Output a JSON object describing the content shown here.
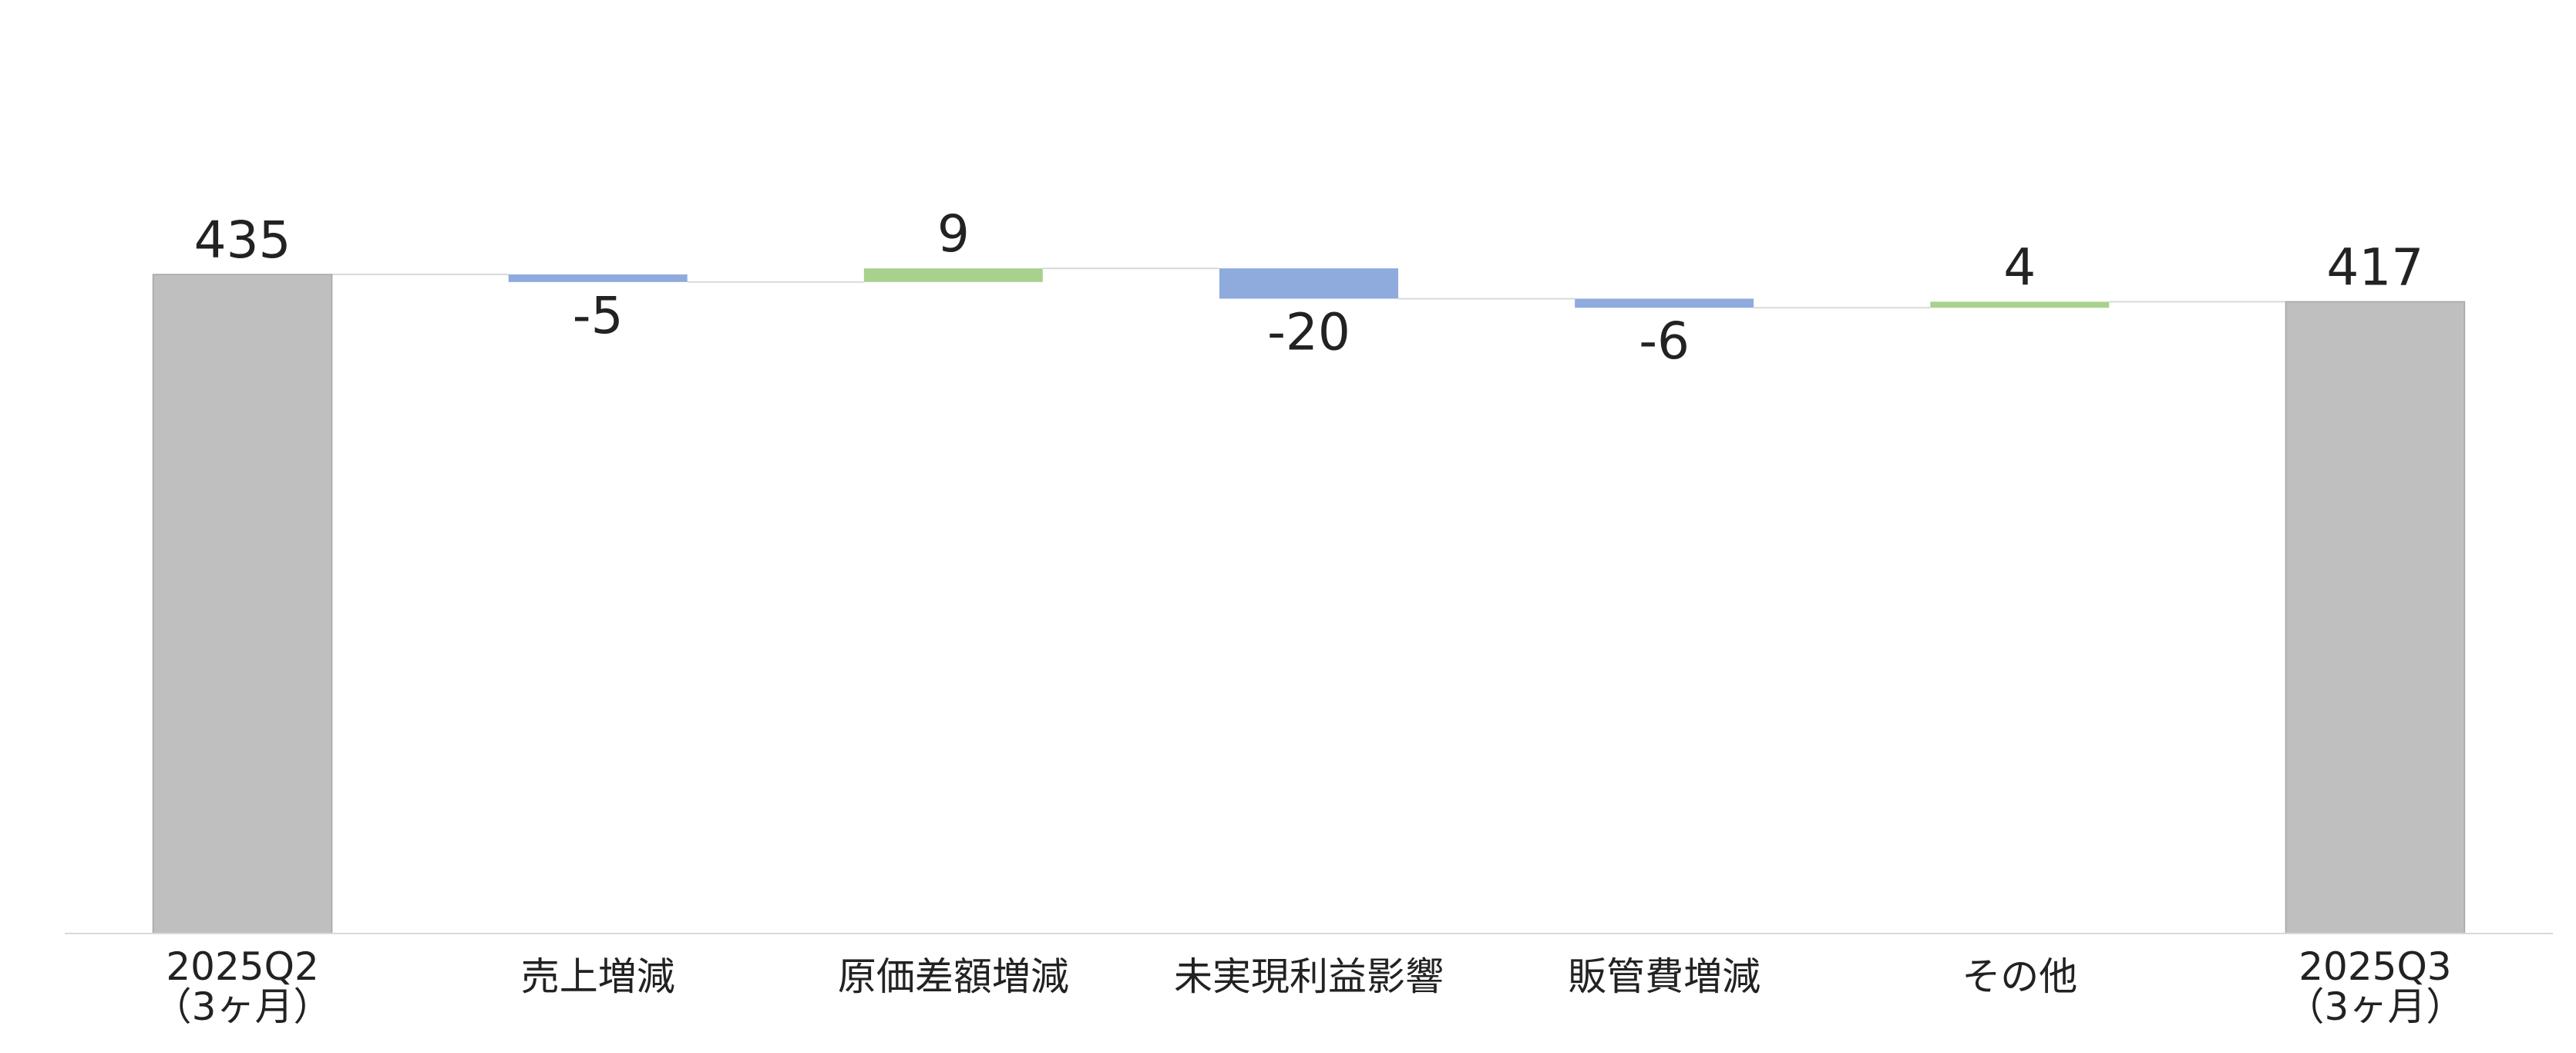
{
  "chart_data": {
    "type": "waterfall",
    "title": "",
    "xlabel": "",
    "ylabel": "",
    "grid": false,
    "legend": "none",
    "ylim": [
      0,
      490
    ],
    "categories": [
      [
        "2025Q2",
        "（3ヶ月）"
      ],
      [
        "売上増減"
      ],
      [
        "原価差額増減"
      ],
      [
        "未実現利益影響"
      ],
      [
        "販管費増減"
      ],
      [
        "その他"
      ],
      [
        "2025Q3",
        "（3ヶ月）"
      ]
    ],
    "values": [
      435,
      -5,
      9,
      -20,
      -6,
      4,
      417
    ],
    "kinds": [
      "total",
      "delta",
      "delta",
      "delta",
      "delta",
      "delta",
      "total"
    ],
    "labels": [
      "435",
      "-5",
      "9",
      "-20",
      "-6",
      "4",
      "417"
    ],
    "colors": {
      "total": "#bfbfbf",
      "increase": "#a9d18e",
      "decrease": "#8faadc",
      "connector": "#d9d9d9",
      "axis": "#d9d9d9"
    }
  }
}
